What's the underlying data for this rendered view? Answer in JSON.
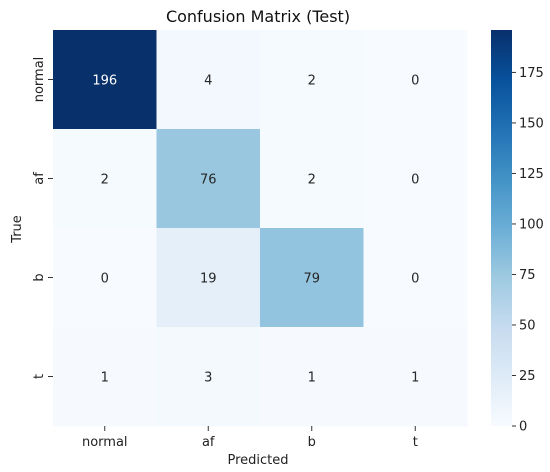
{
  "chart_data": {
    "type": "heatmap",
    "title": "Confusion Matrix (Test)",
    "xlabel": "Predicted",
    "ylabel": "True",
    "x_categories": [
      "normal",
      "af",
      "b",
      "t"
    ],
    "y_categories": [
      "normal",
      "af",
      "b",
      "t"
    ],
    "values": [
      [
        196,
        4,
        2,
        0
      ],
      [
        2,
        76,
        2,
        0
      ],
      [
        0,
        19,
        79,
        0
      ],
      [
        1,
        3,
        1,
        1
      ]
    ],
    "colorbar": {
      "range": [
        0,
        196
      ],
      "ticks": [
        0,
        25,
        50,
        75,
        100,
        125,
        150,
        175
      ]
    },
    "colormap": "Blues",
    "colors": {
      "low": "#f7fbff",
      "high": "#08306b"
    }
  }
}
